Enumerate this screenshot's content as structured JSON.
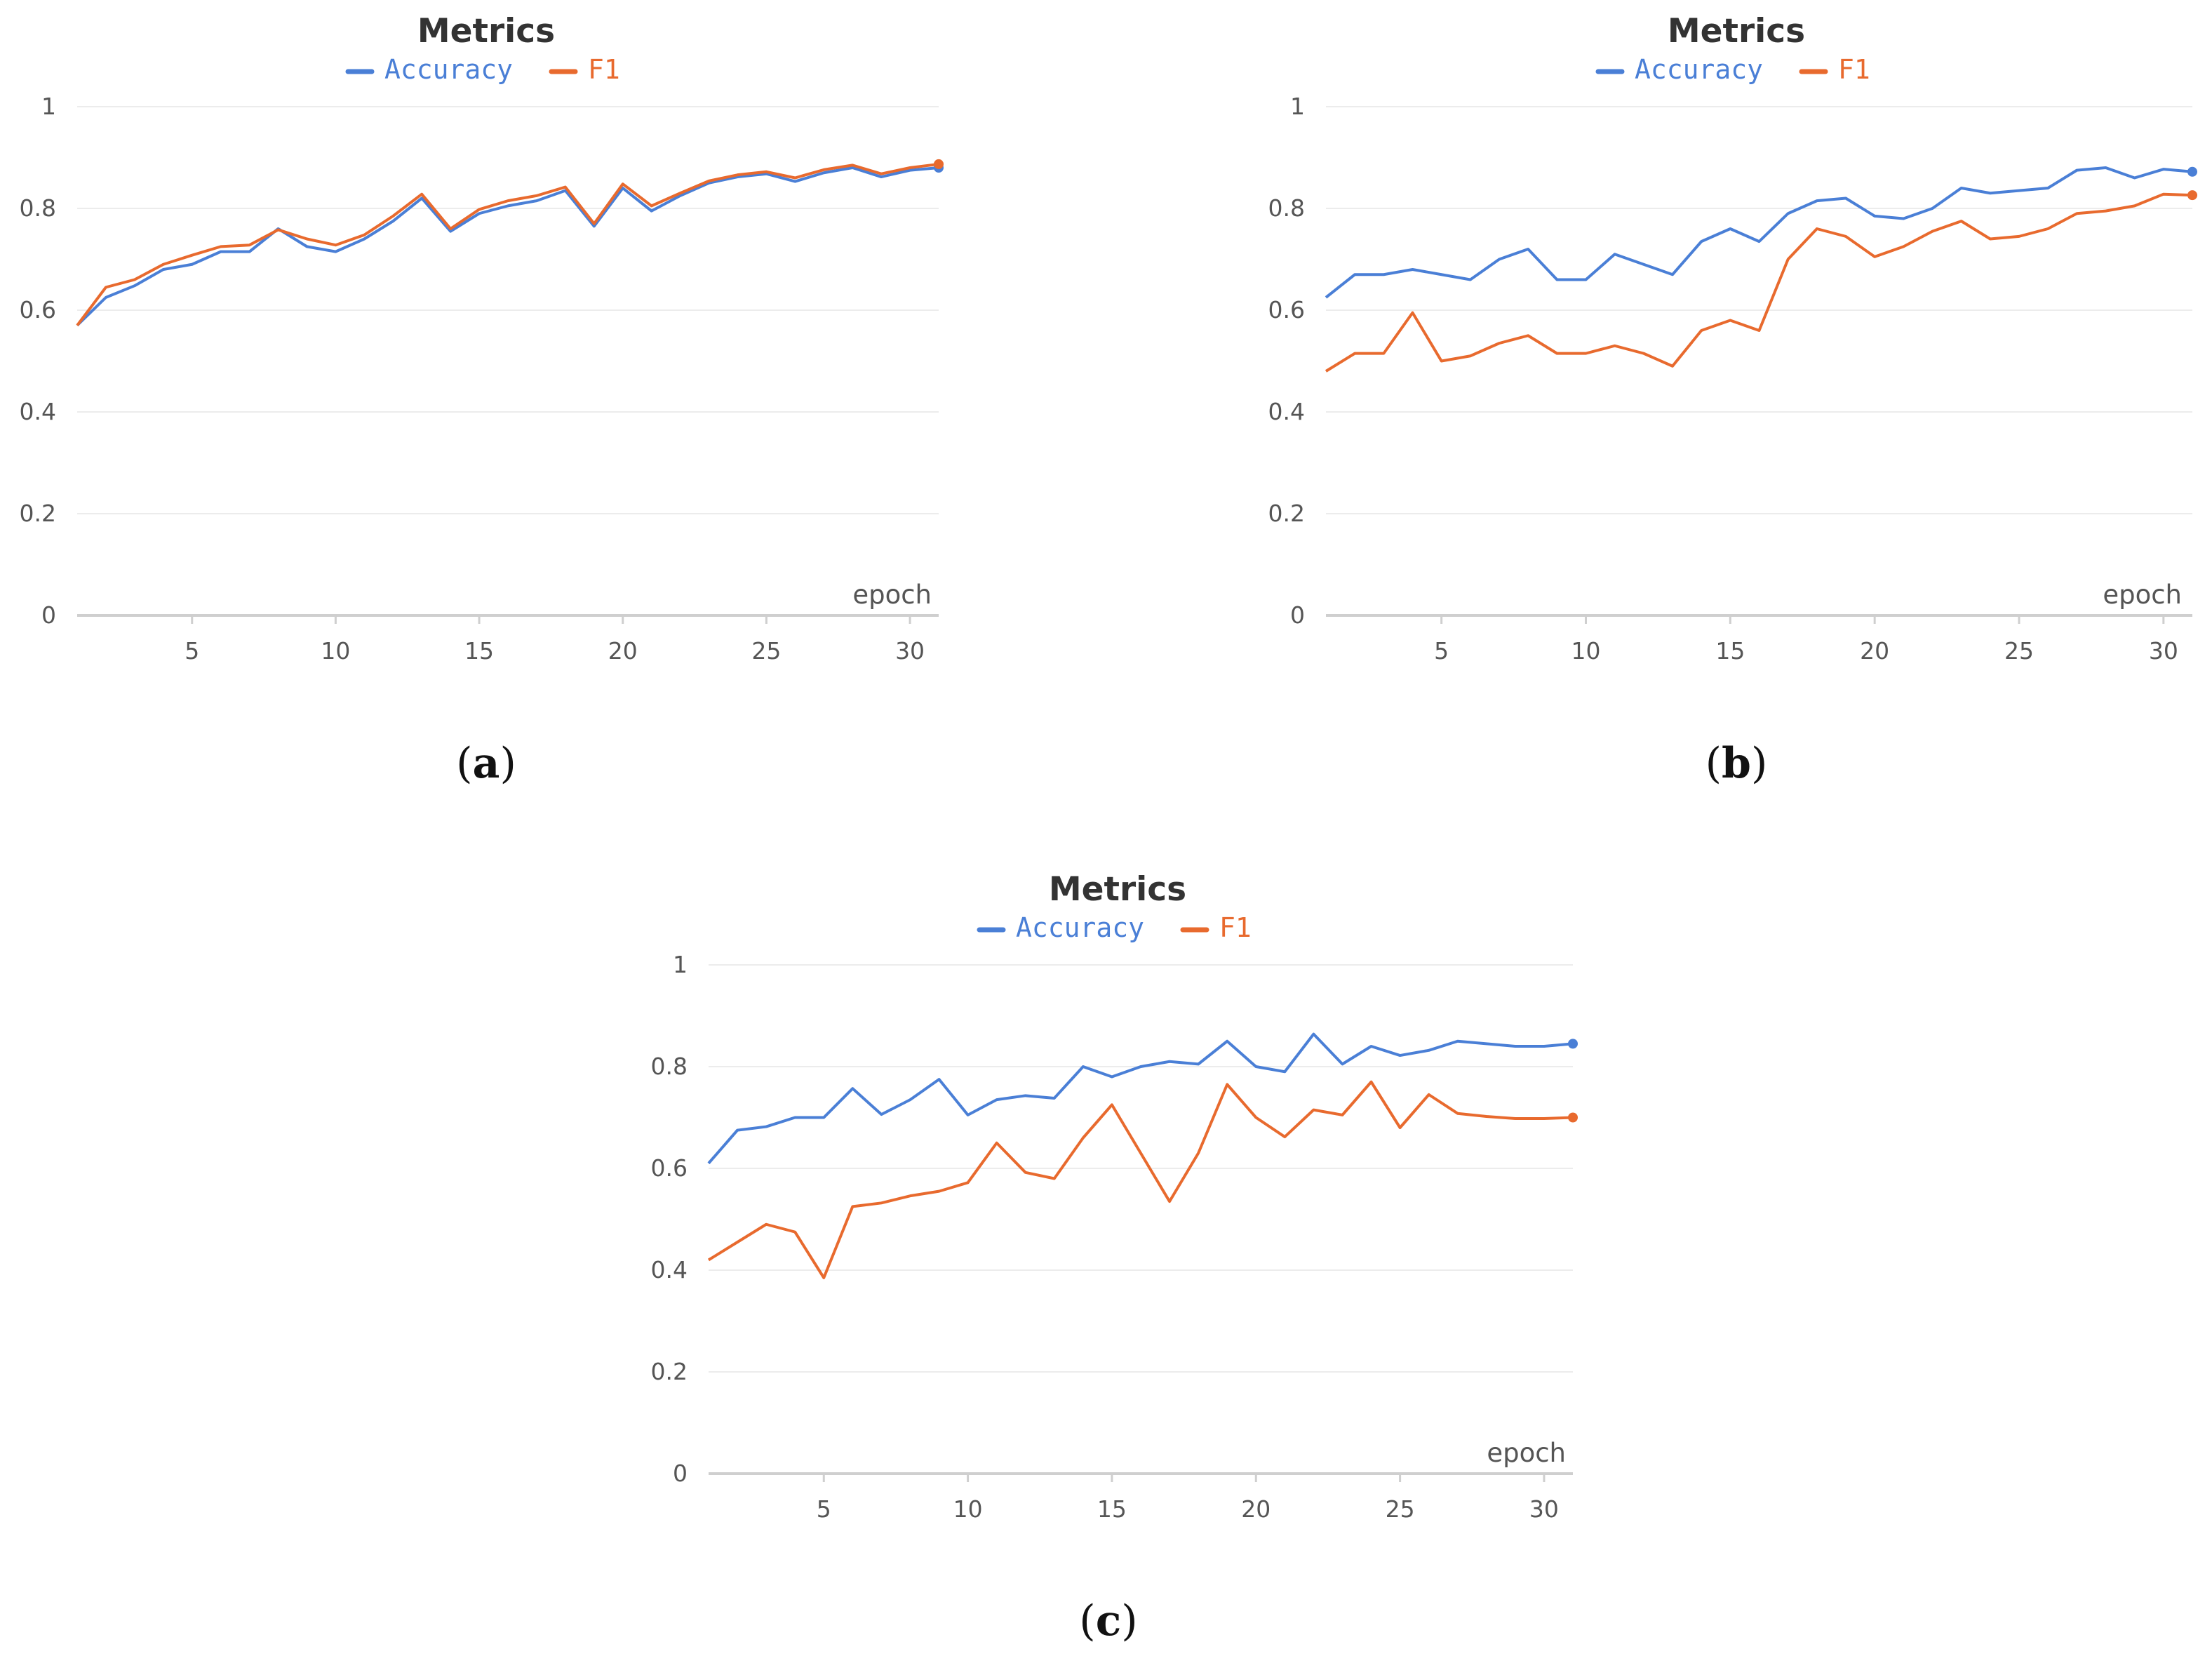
{
  "chart_data": [
    {
      "type": "line",
      "panel": "(a)",
      "title": "Metrics",
      "xlabel": "epoch",
      "ylabel": "",
      "xlim": [
        1,
        31
      ],
      "ylim": [
        0,
        1
      ],
      "yticks": [
        0,
        0.2,
        0.4,
        0.6,
        0.8,
        1
      ],
      "xticks": [
        5,
        10,
        15,
        20,
        25,
        30
      ],
      "legend_position": "top-center",
      "grid": true,
      "x": [
        1,
        2,
        3,
        4,
        5,
        6,
        7,
        8,
        9,
        10,
        11,
        12,
        13,
        14,
        15,
        16,
        17,
        18,
        19,
        20,
        21,
        22,
        23,
        24,
        25,
        26,
        27,
        28,
        29,
        30,
        31
      ],
      "series": [
        {
          "name": "Accuracy",
          "color": "#4a7fd6",
          "values": [
            0.57,
            0.625,
            0.648,
            0.68,
            0.69,
            0.715,
            0.715,
            0.76,
            0.725,
            0.715,
            0.74,
            0.775,
            0.82,
            0.755,
            0.79,
            0.805,
            0.815,
            0.835,
            0.765,
            0.84,
            0.795,
            0.825,
            0.85,
            0.862,
            0.868,
            0.853,
            0.87,
            0.88,
            0.862,
            0.875,
            0.88
          ]
        },
        {
          "name": "F1",
          "color": "#e86a2e",
          "values": [
            0.57,
            0.645,
            0.66,
            0.69,
            0.708,
            0.725,
            0.728,
            0.758,
            0.74,
            0.728,
            0.748,
            0.785,
            0.828,
            0.76,
            0.798,
            0.815,
            0.825,
            0.842,
            0.77,
            0.848,
            0.805,
            0.83,
            0.854,
            0.866,
            0.872,
            0.86,
            0.876,
            0.885,
            0.868,
            0.88,
            0.887
          ]
        }
      ]
    },
    {
      "type": "line",
      "panel": "(b)",
      "title": "Metrics",
      "xlabel": "epoch",
      "ylabel": "",
      "xlim": [
        1,
        31
      ],
      "ylim": [
        0,
        1
      ],
      "yticks": [
        0,
        0.2,
        0.4,
        0.6,
        0.8,
        1
      ],
      "xticks": [
        5,
        10,
        15,
        20,
        25,
        30
      ],
      "legend_position": "top-center",
      "grid": true,
      "x": [
        1,
        2,
        3,
        4,
        5,
        6,
        7,
        8,
        9,
        10,
        11,
        12,
        13,
        14,
        15,
        16,
        17,
        18,
        19,
        20,
        21,
        22,
        23,
        24,
        25,
        26,
        27,
        28,
        29,
        30,
        31
      ],
      "series": [
        {
          "name": "Accuracy",
          "color": "#4a7fd6",
          "values": [
            0.625,
            0.67,
            0.67,
            0.68,
            0.67,
            0.66,
            0.7,
            0.72,
            0.66,
            0.66,
            0.71,
            0.69,
            0.67,
            0.735,
            0.76,
            0.735,
            0.79,
            0.815,
            0.82,
            0.785,
            0.78,
            0.8,
            0.84,
            0.83,
            0.835,
            0.84,
            0.875,
            0.88,
            0.86,
            0.877,
            0.872
          ]
        },
        {
          "name": "F1",
          "color": "#e86a2e",
          "values": [
            0.48,
            0.515,
            0.515,
            0.595,
            0.5,
            0.51,
            0.535,
            0.55,
            0.515,
            0.515,
            0.53,
            0.515,
            0.49,
            0.56,
            0.58,
            0.56,
            0.7,
            0.76,
            0.745,
            0.705,
            0.725,
            0.755,
            0.775,
            0.74,
            0.745,
            0.76,
            0.79,
            0.795,
            0.805,
            0.828,
            0.826
          ]
        }
      ]
    },
    {
      "type": "line",
      "panel": "(c)",
      "title": "Metrics",
      "xlabel": "epoch",
      "ylabel": "",
      "xlim": [
        1,
        31
      ],
      "ylim": [
        0,
        1
      ],
      "yticks": [
        0,
        0.2,
        0.4,
        0.6,
        0.8,
        1
      ],
      "xticks": [
        5,
        10,
        15,
        20,
        25,
        30
      ],
      "legend_position": "top-center",
      "grid": true,
      "x": [
        1,
        2,
        3,
        4,
        5,
        6,
        7,
        8,
        9,
        10,
        11,
        12,
        13,
        14,
        15,
        16,
        17,
        18,
        19,
        20,
        21,
        22,
        23,
        24,
        25,
        26,
        27,
        28,
        29,
        30,
        31
      ],
      "series": [
        {
          "name": "Accuracy",
          "color": "#4a7fd6",
          "values": [
            0.61,
            0.675,
            0.682,
            0.7,
            0.7,
            0.757,
            0.706,
            0.735,
            0.775,
            0.705,
            0.735,
            0.743,
            0.738,
            0.8,
            0.78,
            0.8,
            0.81,
            0.805,
            0.85,
            0.8,
            0.79,
            0.864,
            0.805,
            0.84,
            0.822,
            0.832,
            0.85,
            0.845,
            0.84,
            0.84,
            0.845
          ]
        },
        {
          "name": "F1",
          "color": "#e86a2e",
          "values": [
            0.42,
            0.455,
            0.49,
            0.475,
            0.385,
            0.525,
            0.532,
            0.546,
            0.555,
            0.572,
            0.65,
            0.592,
            0.58,
            0.66,
            0.725,
            0.63,
            0.535,
            0.63,
            0.765,
            0.7,
            0.662,
            0.715,
            0.705,
            0.77,
            0.68,
            0.745,
            0.708,
            0.702,
            0.698,
            0.698,
            0.7
          ]
        }
      ]
    }
  ]
}
